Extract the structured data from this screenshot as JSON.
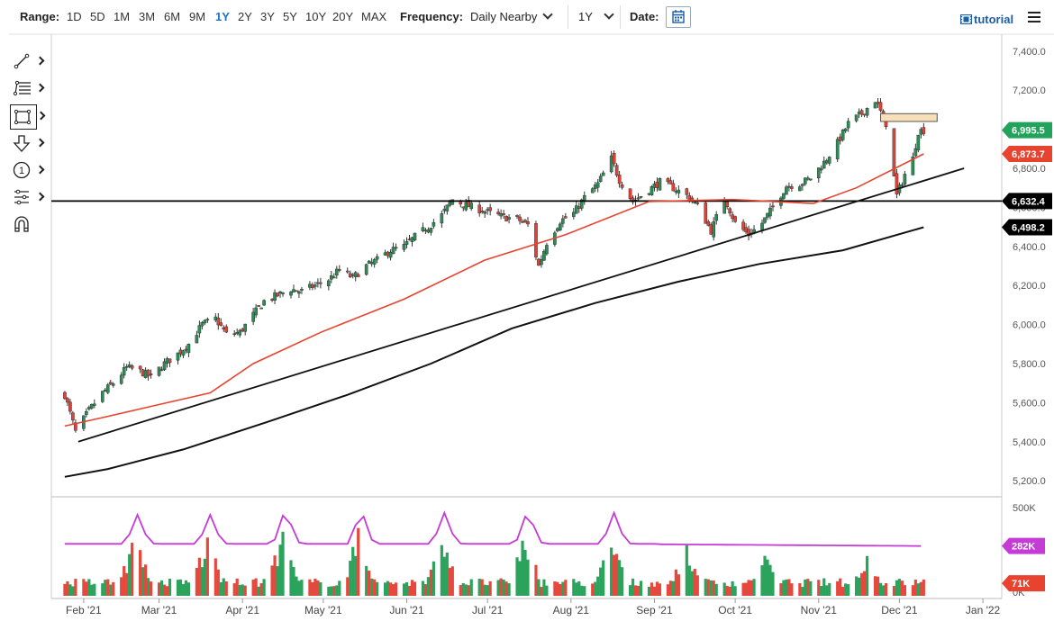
{
  "toolbar": {
    "range_label": "Range:",
    "ranges": [
      "1D",
      "5D",
      "1M",
      "3M",
      "6M",
      "9M",
      "1Y",
      "2Y",
      "3Y",
      "5Y",
      "10Y",
      "20Y",
      "MAX"
    ],
    "active_range": "1Y",
    "frequency_label": "Frequency:",
    "frequency_value": "Daily Nearby",
    "period_value": "1Y",
    "date_label": "Date:",
    "tutorial_label": "tutorial"
  },
  "tools": [
    "line-tool-icon",
    "fibonacci-tool-icon",
    "rectangle-tool-icon",
    "arrow-tool-icon",
    "annotation-tool-icon",
    "pattern-tool-icon",
    "magnet-tool-icon"
  ],
  "annotation_number": "1",
  "colors": {
    "up": "#2e8b57",
    "down": "#d9453a",
    "ma50": "#e8432e",
    "ma200": "#111111",
    "volume_avg": "#c43bd6",
    "support": "#000000"
  },
  "chart_data": [
    {
      "type": "candlestick",
      "x_ticks": [
        "Feb '21",
        "Mar '21",
        "Apr '21",
        "May '21",
        "Jun '21",
        "Jul '21",
        "Aug '21",
        "Sep '21",
        "Oct '21",
        "Nov '21",
        "Dec '21",
        "Jan '22"
      ],
      "y_ticks": [
        "7,400.0",
        "7,200.0",
        "7,000.0",
        "6,800.0",
        "6,600.0",
        "6,400.0",
        "6,200.0",
        "6,000.0",
        "5,800.0",
        "5,600.0",
        "5,400.0",
        "5,200.0"
      ],
      "ylim": [
        5150,
        7450
      ],
      "price_labels": [
        {
          "value": 6995.5,
          "text": "6,995.5",
          "color": "#21a35b"
        },
        {
          "value": 6873.7,
          "text": "6,873.7",
          "color": "#e8432e"
        },
        {
          "value": 6632.4,
          "text": "6,632.4",
          "color": "#000000"
        },
        {
          "value": 6498.2,
          "text": "6,498.2",
          "color": "#000000"
        }
      ],
      "series_close": [
        [
          "2021-01-25",
          5640
        ],
        [
          "2021-01-29",
          5450
        ],
        [
          "2021-02-03",
          5560
        ],
        [
          "2021-02-08",
          5650
        ],
        [
          "2021-02-12",
          5700
        ],
        [
          "2021-02-17",
          5780
        ],
        [
          "2021-02-22",
          5760
        ],
        [
          "2021-02-26",
          5730
        ],
        [
          "2021-03-03",
          5800
        ],
        [
          "2021-03-08",
          5850
        ],
        [
          "2021-03-12",
          5900
        ],
        [
          "2021-03-17",
          6000
        ],
        [
          "2021-03-22",
          6030
        ],
        [
          "2021-03-26",
          5950
        ],
        [
          "2021-03-31",
          5960
        ],
        [
          "2021-04-05",
          6050
        ],
        [
          "2021-04-09",
          6120
        ],
        [
          "2021-04-14",
          6150
        ],
        [
          "2021-04-19",
          6180
        ],
        [
          "2021-04-23",
          6170
        ],
        [
          "2021-04-28",
          6200
        ],
        [
          "2021-05-03",
          6230
        ],
        [
          "2021-05-07",
          6280
        ],
        [
          "2021-05-12",
          6240
        ],
        [
          "2021-05-17",
          6300
        ],
        [
          "2021-05-21",
          6330
        ],
        [
          "2021-05-26",
          6380
        ],
        [
          "2021-05-31",
          6400
        ],
        [
          "2021-06-04",
          6450
        ],
        [
          "2021-06-09",
          6500
        ],
        [
          "2021-06-14",
          6560
        ],
        [
          "2021-06-18",
          6640
        ],
        [
          "2021-06-23",
          6610
        ],
        [
          "2021-06-28",
          6590
        ],
        [
          "2021-07-02",
          6570
        ],
        [
          "2021-07-07",
          6550
        ],
        [
          "2021-07-12",
          6540
        ],
        [
          "2021-07-16",
          6510
        ],
        [
          "2021-07-20",
          6300
        ],
        [
          "2021-07-23",
          6420
        ],
        [
          "2021-07-28",
          6530
        ],
        [
          "2021-08-02",
          6570
        ],
        [
          "2021-08-06",
          6650
        ],
        [
          "2021-08-11",
          6720
        ],
        [
          "2021-08-16",
          6850
        ],
        [
          "2021-08-19",
          6740
        ],
        [
          "2021-08-24",
          6630
        ],
        [
          "2021-08-30",
          6690
        ],
        [
          "2021-09-03",
          6730
        ],
        [
          "2021-09-08",
          6700
        ],
        [
          "2021-09-13",
          6660
        ],
        [
          "2021-09-17",
          6610
        ],
        [
          "2021-09-22",
          6480
        ],
        [
          "2021-09-27",
          6650
        ],
        [
          "2021-10-01",
          6520
        ],
        [
          "2021-10-06",
          6460
        ],
        [
          "2021-10-11",
          6520
        ],
        [
          "2021-10-15",
          6600
        ],
        [
          "2021-10-20",
          6710
        ],
        [
          "2021-10-25",
          6720
        ],
        [
          "2021-10-29",
          6750
        ],
        [
          "2021-11-03",
          6830
        ],
        [
          "2021-11-08",
          6930
        ],
        [
          "2021-11-12",
          7030
        ],
        [
          "2021-11-17",
          7080
        ],
        [
          "2021-11-22",
          7150
        ],
        [
          "2021-11-26",
          7030
        ],
        [
          "2021-11-30",
          6660
        ],
        [
          "2021-12-03",
          6770
        ],
        [
          "2021-12-06",
          6850
        ],
        [
          "2021-12-08",
          6990
        ],
        [
          "2021-12-10",
          6995.5
        ]
      ],
      "ma50": [
        [
          "2021-01-25",
          5480
        ],
        [
          "2021-02-10",
          5530
        ],
        [
          "2021-03-01",
          5590
        ],
        [
          "2021-03-20",
          5650
        ],
        [
          "2021-04-05",
          5800
        ],
        [
          "2021-04-30",
          5960
        ],
        [
          "2021-05-31",
          6130
        ],
        [
          "2021-06-30",
          6330
        ],
        [
          "2021-07-30",
          6460
        ],
        [
          "2021-08-30",
          6630
        ],
        [
          "2021-09-30",
          6640
        ],
        [
          "2021-10-30",
          6620
        ],
        [
          "2021-11-15",
          6700
        ],
        [
          "2021-12-10",
          6873.7
        ]
      ],
      "ma200": [
        [
          "2021-01-25",
          5220
        ],
        [
          "2021-02-10",
          5260
        ],
        [
          "2021-03-10",
          5360
        ],
        [
          "2021-04-10",
          5500
        ],
        [
          "2021-05-10",
          5640
        ],
        [
          "2021-06-10",
          5800
        ],
        [
          "2021-07-10",
          5980
        ],
        [
          "2021-08-10",
          6110
        ],
        [
          "2021-09-10",
          6220
        ],
        [
          "2021-10-10",
          6310
        ],
        [
          "2021-11-10",
          6380
        ],
        [
          "2021-12-10",
          6498.2
        ]
      ],
      "support_level": 6632.4,
      "trendline": [
        [
          "2021-01-30",
          5400
        ],
        [
          "2021-12-25",
          6800
        ]
      ],
      "resistance_zone": {
        "x0": "2021-11-24",
        "x1": "2021-12-15",
        "y0": 7080,
        "y1": 7040
      }
    },
    {
      "type": "bar",
      "title": "volume",
      "y_ticks": [
        "500K",
        "0K"
      ],
      "price_labels": [
        {
          "value": 282,
          "text": "282K",
          "color": "#c43bd6"
        },
        {
          "value": 71,
          "text": "71K",
          "color": "#e8432e"
        }
      ],
      "volume_avg_level": 282,
      "volume_spikes": [
        [
          "2021-02-20",
          390
        ],
        [
          "2021-03-19",
          390
        ],
        [
          "2021-04-16",
          420
        ],
        [
          "2021-05-14",
          410
        ],
        [
          "2021-06-14",
          410
        ],
        [
          "2021-07-15",
          410
        ],
        [
          "2021-08-16",
          410
        ],
        [
          "2021-09-13",
          300
        ],
        [
          "2021-10-12",
          290
        ],
        [
          "2021-11-19",
          270
        ]
      ]
    }
  ]
}
